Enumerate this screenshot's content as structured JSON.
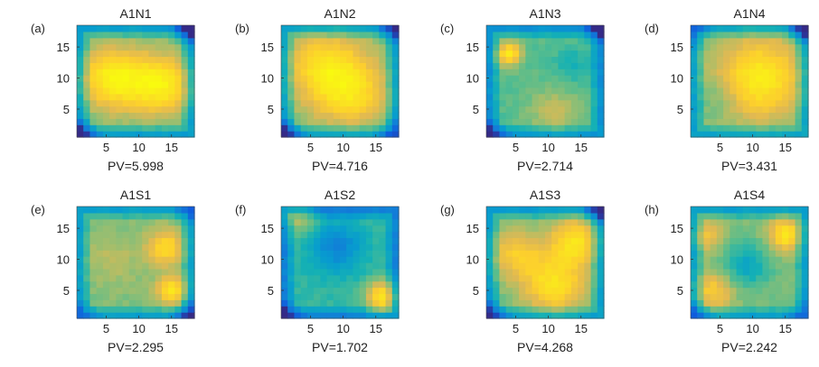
{
  "chart_data": [
    {
      "id": "A1N1",
      "type": "heatmap",
      "label": "(a)",
      "title": "A1N1",
      "footer": "PV=5.998",
      "pv": 5.998,
      "xlim": [
        0,
        19
      ],
      "ylim": [
        0,
        19
      ],
      "xticks": [
        "5",
        "10",
        "15"
      ],
      "yticks": [
        "5",
        "10",
        "15"
      ],
      "colormap": "parula",
      "grid": "18x18",
      "features": {
        "base": 0.52,
        "blobs": [
          {
            "x": 6,
            "y": 10,
            "s": 3.6,
            "a": 0.42
          },
          {
            "x": 13.5,
            "y": 9,
            "s": 3.4,
            "a": 0.4
          }
        ],
        "corners": [
          {
            "c": "tr",
            "a": 0.45
          },
          {
            "c": "bl",
            "a": 0.35
          }
        ]
      }
    },
    {
      "id": "A1N2",
      "type": "heatmap",
      "label": "(b)",
      "title": "A1N2",
      "footer": "PV=4.716",
      "pv": 4.716,
      "xlim": [
        0,
        19
      ],
      "ylim": [
        0,
        19
      ],
      "xticks": [
        "5",
        "10",
        "15"
      ],
      "yticks": [
        "5",
        "10",
        "15"
      ],
      "colormap": "parula",
      "grid": "18x18",
      "features": {
        "base": 0.52,
        "blobs": [
          {
            "x": 9,
            "y": 10,
            "s": 4.5,
            "a": 0.42
          },
          {
            "x": 5,
            "y": 14,
            "s": 3,
            "a": 0.1
          },
          {
            "x": 13,
            "y": 6,
            "s": 3,
            "a": 0.12
          }
        ],
        "corners": [
          {
            "c": "tr",
            "a": 0.3
          },
          {
            "c": "bl",
            "a": 0.35
          },
          {
            "c": "br",
            "a": 0.25
          }
        ]
      }
    },
    {
      "id": "A1N3",
      "type": "heatmap",
      "label": "(c)",
      "title": "A1N3",
      "footer": "PV=2.714",
      "pv": 2.714,
      "xlim": [
        0,
        19
      ],
      "ylim": [
        0,
        19
      ],
      "xticks": [
        "5",
        "10",
        "15"
      ],
      "yticks": [
        "5",
        "10",
        "15"
      ],
      "colormap": "parula",
      "grid": "18x18",
      "features": {
        "base": 0.5,
        "blobs": [
          {
            "x": 4,
            "y": 14,
            "s": 1.3,
            "a": 0.42
          },
          {
            "x": 11,
            "y": 4.5,
            "s": 2.8,
            "a": 0.15
          },
          {
            "x": 14,
            "y": 12,
            "s": 2.2,
            "a": -0.1
          }
        ],
        "corners": [
          {
            "c": "tr",
            "a": 0.35
          },
          {
            "c": "bl",
            "a": 0.3
          }
        ]
      }
    },
    {
      "id": "A1N4",
      "type": "heatmap",
      "label": "(d)",
      "title": "A1N4",
      "footer": "PV=3.431",
      "pv": 3.431,
      "xlim": [
        0,
        19
      ],
      "ylim": [
        0,
        19
      ],
      "xticks": [
        "5",
        "10",
        "15"
      ],
      "yticks": [
        "5",
        "10",
        "15"
      ],
      "colormap": "parula",
      "grid": "18x18",
      "features": {
        "base": 0.55,
        "blobs": [
          {
            "x": 11,
            "y": 10,
            "s": 4.5,
            "a": 0.38
          },
          {
            "x": 5,
            "y": 7,
            "s": 2.5,
            "a": -0.08
          }
        ],
        "corners": [
          {
            "c": "tr",
            "a": 0.4
          },
          {
            "c": "tl",
            "a": 0.2
          }
        ]
      }
    },
    {
      "id": "A1S1",
      "type": "heatmap",
      "label": "(e)",
      "title": "A1S1",
      "footer": "PV=2.295",
      "pv": 2.295,
      "xlim": [
        0,
        19
      ],
      "ylim": [
        0,
        19
      ],
      "xticks": [
        "5",
        "10",
        "15"
      ],
      "yticks": [
        "5",
        "10",
        "15"
      ],
      "colormap": "parula",
      "grid": "18x18",
      "features": {
        "base": 0.55,
        "blobs": [
          {
            "x": 14,
            "y": 12,
            "s": 2,
            "a": 0.3
          },
          {
            "x": 15,
            "y": 5,
            "s": 1.6,
            "a": 0.35
          },
          {
            "x": 6,
            "y": 10,
            "s": 3,
            "a": 0.08
          }
        ],
        "corners": [
          {
            "c": "br",
            "a": 0.35
          },
          {
            "c": "tr",
            "a": 0.2
          },
          {
            "c": "bl",
            "a": 0.2
          }
        ]
      }
    },
    {
      "id": "A1S2",
      "type": "heatmap",
      "label": "(f)",
      "title": "A1S2",
      "footer": "PV=1.702",
      "pv": 1.702,
      "xlim": [
        0,
        19
      ],
      "ylim": [
        0,
        19
      ],
      "xticks": [
        "5",
        "10",
        "15"
      ],
      "yticks": [
        "5",
        "10",
        "15"
      ],
      "colormap": "parula",
      "grid": "18x18",
      "features": {
        "base": 0.45,
        "blobs": [
          {
            "x": 16,
            "y": 4,
            "s": 1.8,
            "a": 0.45
          },
          {
            "x": 3,
            "y": 17,
            "s": 2,
            "a": 0.2
          },
          {
            "x": 9,
            "y": 12,
            "s": 3,
            "a": -0.22
          }
        ],
        "corners": [
          {
            "c": "bl",
            "a": 0.25
          }
        ]
      }
    },
    {
      "id": "A1S3",
      "type": "heatmap",
      "label": "(g)",
      "title": "A1S3",
      "footer": "PV=4.268",
      "pv": 4.268,
      "xlim": [
        0,
        19
      ],
      "ylim": [
        0,
        19
      ],
      "xticks": [
        "5",
        "10",
        "15"
      ],
      "yticks": [
        "5",
        "10",
        "15"
      ],
      "colormap": "parula",
      "grid": "18x18",
      "features": {
        "base": 0.52,
        "blobs": [
          {
            "x": 11,
            "y": 6,
            "s": 3.5,
            "a": 0.35
          },
          {
            "x": 14,
            "y": 13,
            "s": 2.6,
            "a": 0.35
          },
          {
            "x": 5,
            "y": 11,
            "s": 3,
            "a": 0.25
          }
        ],
        "corners": [
          {
            "c": "tr",
            "a": 0.35
          },
          {
            "c": "bl",
            "a": 0.3
          }
        ]
      }
    },
    {
      "id": "A1S4",
      "type": "heatmap",
      "label": "(h)",
      "title": "A1S4",
      "footer": "PV=2.242",
      "pv": 2.242,
      "xlim": [
        0,
        19
      ],
      "ylim": [
        0,
        19
      ],
      "xticks": [
        "5",
        "10",
        "15"
      ],
      "yticks": [
        "5",
        "10",
        "15"
      ],
      "colormap": "parula",
      "grid": "18x18",
      "features": {
        "base": 0.55,
        "blobs": [
          {
            "x": 15,
            "y": 14,
            "s": 1.8,
            "a": 0.35
          },
          {
            "x": 3,
            "y": 14,
            "s": 1.8,
            "a": 0.2
          },
          {
            "x": 4,
            "y": 5,
            "s": 2.2,
            "a": 0.25
          },
          {
            "x": 9,
            "y": 9,
            "s": 2.6,
            "a": -0.2
          }
        ],
        "corners": [
          {
            "c": "bl",
            "a": 0.25
          },
          {
            "c": "br",
            "a": 0.2
          }
        ]
      }
    }
  ]
}
